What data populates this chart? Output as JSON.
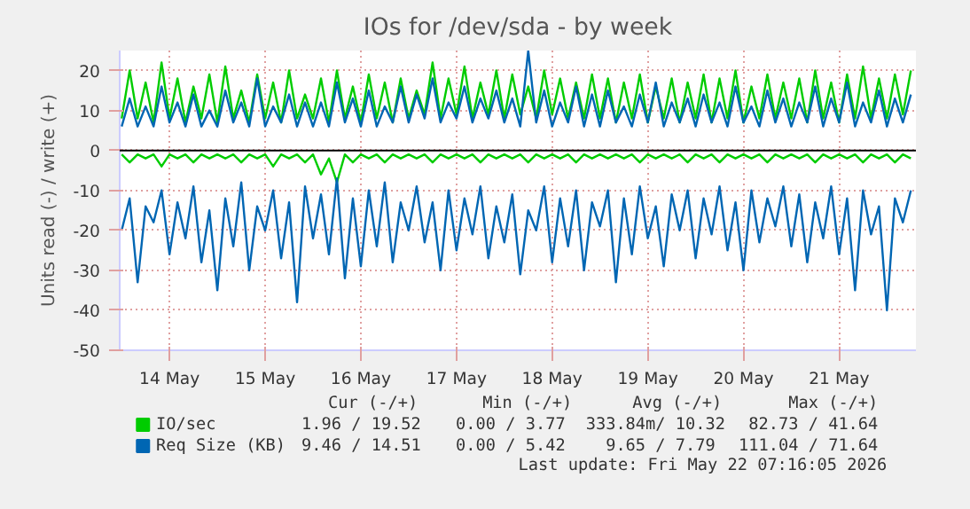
{
  "chart_data": {
    "type": "line",
    "title": "IOs for /dev/sda - by week",
    "ylabel": "Units read (-) / write (+)",
    "x": [
      "2026-05-14T00:00",
      "2026-05-14T02:00",
      "2026-05-14T04:00",
      "2026-05-14T06:00",
      "2026-05-14T08:00",
      "2026-05-14T10:00",
      "2026-05-14T12:00",
      "2026-05-14T14:00",
      "2026-05-14T16:00",
      "2026-05-14T18:00",
      "2026-05-14T20:00",
      "2026-05-14T22:00",
      "2026-05-15T00:00",
      "2026-05-15T02:00",
      "2026-05-15T04:00",
      "2026-05-15T06:00",
      "2026-05-15T08:00",
      "2026-05-15T10:00",
      "2026-05-15T12:00",
      "2026-05-15T14:00",
      "2026-05-15T16:00",
      "2026-05-15T18:00",
      "2026-05-15T20:00",
      "2026-05-15T22:00",
      "2026-05-16T00:00",
      "2026-05-16T02:00",
      "2026-05-16T04:00",
      "2026-05-16T06:00",
      "2026-05-16T08:00",
      "2026-05-16T10:00",
      "2026-05-16T12:00",
      "2026-05-16T14:00",
      "2026-05-16T16:00",
      "2026-05-16T18:00",
      "2026-05-16T20:00",
      "2026-05-16T22:00",
      "2026-05-17T00:00",
      "2026-05-17T02:00",
      "2026-05-17T04:00",
      "2026-05-17T06:00",
      "2026-05-17T08:00",
      "2026-05-17T10:00",
      "2026-05-17T12:00",
      "2026-05-17T14:00",
      "2026-05-17T16:00",
      "2026-05-17T18:00",
      "2026-05-17T20:00",
      "2026-05-17T22:00",
      "2026-05-18T00:00",
      "2026-05-18T02:00",
      "2026-05-18T04:00",
      "2026-05-18T06:00",
      "2026-05-18T08:00",
      "2026-05-18T10:00",
      "2026-05-18T12:00",
      "2026-05-18T14:00",
      "2026-05-18T16:00",
      "2026-05-18T18:00",
      "2026-05-18T20:00",
      "2026-05-18T22:00",
      "2026-05-19T00:00",
      "2026-05-19T02:00",
      "2026-05-19T04:00",
      "2026-05-19T06:00",
      "2026-05-19T08:00",
      "2026-05-19T10:00",
      "2026-05-19T12:00",
      "2026-05-19T14:00",
      "2026-05-19T16:00",
      "2026-05-19T18:00",
      "2026-05-19T20:00",
      "2026-05-19T22:00",
      "2026-05-20T00:00",
      "2026-05-20T02:00",
      "2026-05-20T04:00",
      "2026-05-20T06:00",
      "2026-05-20T08:00",
      "2026-05-20T10:00",
      "2026-05-20T12:00",
      "2026-05-20T14:00",
      "2026-05-20T16:00",
      "2026-05-20T18:00",
      "2026-05-20T20:00",
      "2026-05-20T22:00",
      "2026-05-21T00:00",
      "2026-05-21T02:00",
      "2026-05-21T04:00",
      "2026-05-21T06:00",
      "2026-05-21T08:00",
      "2026-05-21T10:00",
      "2026-05-21T12:00",
      "2026-05-21T14:00",
      "2026-05-21T16:00",
      "2026-05-21T18:00",
      "2026-05-21T20:00",
      "2026-05-21T22:00",
      "2026-05-22T00:00",
      "2026-05-22T02:00",
      "2026-05-22T04:00",
      "2026-05-22T06:00"
    ],
    "xlim": [
      "2026-05-13T23:30",
      "2026-05-22T07:16"
    ],
    "xticks": [
      {
        "value": "2026-05-14T12:00",
        "label": "14 May"
      },
      {
        "value": "2026-05-15T12:00",
        "label": "15 May"
      },
      {
        "value": "2026-05-16T12:00",
        "label": "16 May"
      },
      {
        "value": "2026-05-17T12:00",
        "label": "17 May"
      },
      {
        "value": "2026-05-18T12:00",
        "label": "18 May"
      },
      {
        "value": "2026-05-19T12:00",
        "label": "19 May"
      },
      {
        "value": "2026-05-20T12:00",
        "label": "20 May"
      },
      {
        "value": "2026-05-21T12:00",
        "label": "21 May"
      }
    ],
    "ylim": [
      -50,
      25
    ],
    "yticks": [
      -50,
      -40,
      -30,
      -20,
      -10,
      0,
      10,
      20
    ],
    "grid": true,
    "legend": "bottom",
    "marker": "none",
    "line_style": "solid",
    "ref_lines": [
      {
        "axis": "y",
        "value": 0,
        "color": "#000000"
      }
    ],
    "series": [
      {
        "name": "IO/sec",
        "color": "#00cc00",
        "values": [
          8,
          20,
          8,
          17,
          7,
          22,
          8,
          18,
          7,
          16,
          8,
          19,
          7,
          21,
          8,
          15,
          7,
          19,
          8,
          17,
          7,
          20,
          8,
          14,
          8,
          18,
          7,
          20,
          8,
          16,
          7,
          19,
          8,
          17,
          7,
          18,
          8,
          15,
          9,
          22,
          8,
          18,
          9,
          21,
          8,
          17,
          9,
          20,
          8,
          19,
          9,
          16,
          8,
          20,
          9,
          18,
          8,
          17,
          8,
          19,
          8,
          18,
          7,
          17,
          8,
          19,
          7,
          16,
          8,
          18,
          7,
          17,
          8,
          19,
          7,
          18,
          8,
          20,
          7,
          16,
          8,
          19,
          8,
          17,
          8,
          18,
          7,
          20,
          8,
          17,
          7,
          19,
          8,
          21,
          8,
          18,
          8,
          19,
          9,
          20
        ]
      },
      {
        "color": "#00cc00",
        "values": [
          -1,
          -3,
          -1,
          -2,
          -1,
          -4,
          -1,
          -2,
          -1,
          -3,
          -1,
          -2,
          -1,
          -2,
          -1,
          -3,
          -1,
          -2,
          -1,
          -4,
          -1,
          -2,
          -1,
          -3,
          -1,
          -6,
          -2,
          -8,
          -1,
          -3,
          -1,
          -2,
          -1,
          -3,
          -1,
          -2,
          -1,
          -2,
          -1,
          -3,
          -1,
          -2,
          -1,
          -2,
          -1,
          -3,
          -1,
          -2,
          -1,
          -2,
          -1,
          -3,
          -1,
          -2,
          -1,
          -2,
          -1,
          -3,
          -1,
          -2,
          -1,
          -2,
          -1,
          -2,
          -1,
          -3,
          -1,
          -2,
          -1,
          -2,
          -1,
          -3,
          -1,
          -2,
          -1,
          -3,
          -1,
          -2,
          -1,
          -2,
          -1,
          -3,
          -1,
          -2,
          -1,
          -2,
          -1,
          -3,
          -1,
          -2,
          -1,
          -2,
          -1,
          -3,
          -1,
          -2,
          -1,
          -3,
          -1,
          -2
        ]
      },
      {
        "name": "Req Size (KB)",
        "color": "#0066b3",
        "values": [
          6,
          13,
          6,
          11,
          6,
          16,
          7,
          12,
          6,
          14,
          6,
          10,
          6,
          15,
          7,
          12,
          6,
          18,
          6,
          11,
          7,
          14,
          6,
          12,
          6,
          12,
          6,
          17,
          7,
          13,
          6,
          15,
          6,
          11,
          7,
          16,
          7,
          14,
          8,
          18,
          7,
          12,
          8,
          16,
          7,
          13,
          8,
          15,
          7,
          13,
          6,
          25,
          7,
          15,
          6,
          12,
          7,
          16,
          6,
          14,
          6,
          15,
          7,
          11,
          6,
          14,
          7,
          17,
          6,
          12,
          7,
          13,
          6,
          14,
          7,
          12,
          6,
          16,
          7,
          11,
          6,
          15,
          7,
          13,
          6,
          12,
          7,
          16,
          6,
          13,
          7,
          17,
          6,
          12,
          7,
          15,
          6,
          13,
          7,
          14
        ]
      },
      {
        "color": "#0066b3",
        "values": [
          -20,
          -12,
          -33,
          -14,
          -18,
          -10,
          -26,
          -13,
          -22,
          -9,
          -28,
          -15,
          -35,
          -12,
          -24,
          -8,
          -30,
          -14,
          -20,
          -10,
          -27,
          -13,
          -38,
          -9,
          -22,
          -11,
          -26,
          -7,
          -32,
          -12,
          -29,
          -10,
          -24,
          -8,
          -28,
          -13,
          -20,
          -9,
          -23,
          -13,
          -30,
          -10,
          -25,
          -12,
          -21,
          -9,
          -27,
          -14,
          -23,
          -11,
          -31,
          -15,
          -20,
          -9,
          -28,
          -12,
          -24,
          -10,
          -30,
          -13,
          -19,
          -10,
          -33,
          -12,
          -26,
          -9,
          -22,
          -14,
          -29,
          -11,
          -20,
          -10,
          -27,
          -12,
          -21,
          -9,
          -25,
          -13,
          -30,
          -10,
          -23,
          -12,
          -19,
          -9,
          -24,
          -11,
          -28,
          -13,
          -22,
          -9,
          -26,
          -12,
          -35,
          -10,
          -21,
          -14,
          -40,
          -12,
          -18,
          -10
        ]
      }
    ],
    "annotations": [
      "Cur (-/+)",
      "Min (-/+)",
      "Avg (-/+)",
      "Max (-/+)",
      "1.96 / 19.52",
      "0.00 /  3.77",
      "333.84m/ 10.32",
      "82.73 / 41.64",
      "9.46 / 14.51",
      "0.00 /  5.42",
      "9.65 /  7.79",
      "111.04 / 71.64",
      "Last update: Fri May 22 07:16:05 2026"
    ]
  }
}
